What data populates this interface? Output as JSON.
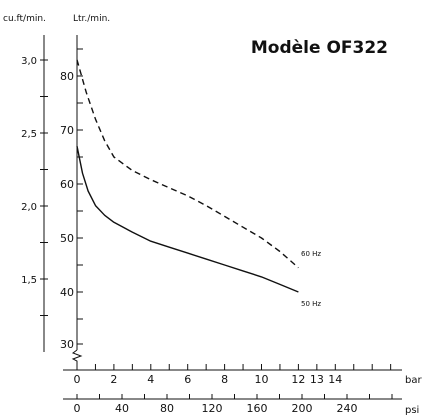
{
  "chart_data": {
    "type": "line",
    "title": "Modèle OF322",
    "y_left_label": "cu.ft/min.",
    "y_inner_label": "Ltr./min.",
    "x_label_bar": "bar",
    "x_label_psi": "psi",
    "x_ticks_bar": [
      "0",
      "2",
      "4",
      "6",
      "8",
      "10",
      "12",
      "13",
      "14"
    ],
    "x_ticks_bar_values": [
      0,
      2,
      4,
      6,
      8,
      10,
      12,
      13,
      14
    ],
    "x_ticks_psi": [
      "0",
      "40",
      "80",
      "120",
      "160",
      "200",
      "240"
    ],
    "x_ticks_psi_values": [
      0,
      40,
      80,
      120,
      160,
      200,
      240
    ],
    "y_ticks_ltr": [
      "30",
      "40",
      "50",
      "60",
      "70",
      "80"
    ],
    "y_ticks_ltr_values": [
      30,
      40,
      50,
      60,
      70,
      80
    ],
    "y_ticks_cuft": [
      "1,5",
      "2,0",
      "2,5",
      "3,0"
    ],
    "y_ticks_cuft_values": [
      1.5,
      2.0,
      2.5,
      3.0
    ],
    "xlim": [
      0,
      17.6
    ],
    "ylim": [
      27,
      85
    ],
    "grid": false,
    "series": [
      {
        "name": "60 Hz",
        "style": "dashed",
        "x": [
          0,
          0.5,
          1,
          1.5,
          2,
          3,
          4,
          5,
          6,
          7,
          8,
          9,
          10,
          11,
          12
        ],
        "y": [
          83,
          77,
          72,
          68,
          65,
          62.5,
          60.8,
          59.3,
          57.8,
          56,
          54,
          52,
          50,
          47.5,
          44.5
        ]
      },
      {
        "name": "50 Hz",
        "style": "solid",
        "x": [
          0,
          0.3,
          0.6,
          1,
          1.5,
          2,
          3,
          4,
          5,
          6,
          7,
          8,
          9,
          10,
          11,
          12
        ],
        "y": [
          67,
          62,
          58.7,
          56,
          54.2,
          52.9,
          51.1,
          49.4,
          48.3,
          47.2,
          46.1,
          45,
          43.9,
          42.8,
          41.4,
          40
        ]
      }
    ]
  }
}
